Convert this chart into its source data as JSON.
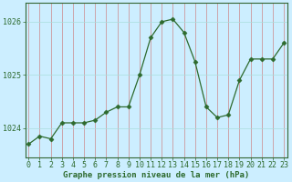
{
  "x": [
    0,
    1,
    2,
    3,
    4,
    5,
    6,
    7,
    8,
    9,
    10,
    11,
    12,
    13,
    14,
    15,
    16,
    17,
    18,
    19,
    20,
    21,
    22,
    23
  ],
  "y": [
    1023.7,
    1023.85,
    1023.8,
    1024.1,
    1024.1,
    1024.1,
    1024.15,
    1024.3,
    1024.4,
    1024.4,
    1025.0,
    1025.7,
    1026.0,
    1026.05,
    1025.8,
    1025.25,
    1024.4,
    1024.2,
    1024.25,
    1024.9,
    1025.3,
    1025.3,
    1025.3,
    1025.6
  ],
  "line_color": "#2d6a2d",
  "marker": "D",
  "marker_size": 2.5,
  "bg_color": "#cceeff",
  "grid_color_v": "#cc8888",
  "grid_color_h": "#aadddd",
  "ylabel_ticks": [
    1024,
    1025,
    1026
  ],
  "xticks": [
    0,
    1,
    2,
    3,
    4,
    5,
    6,
    7,
    8,
    9,
    10,
    11,
    12,
    13,
    14,
    15,
    16,
    17,
    18,
    19,
    20,
    21,
    22,
    23
  ],
  "ylim": [
    1023.45,
    1026.35
  ],
  "xlim": [
    -0.3,
    23.3
  ],
  "xlabel": "Graphe pression niveau de la mer (hPa)",
  "xlabel_fontsize": 6.5,
  "tick_fontsize": 6,
  "spine_color": "#336633",
  "linewidth": 0.9
}
